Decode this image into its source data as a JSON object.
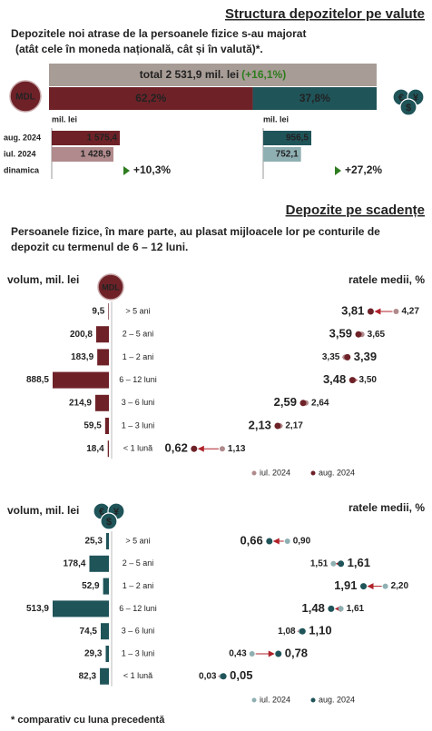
{
  "header": {
    "title": "Structura depozitelor pe valute",
    "subtitle": [
      "Depozitele noi atrase de la persoanele fizice s-au majorat",
      "(atât cele în moneda națională, cât și în valută)*."
    ]
  },
  "currency_split": {
    "total_label": "total 2 531,9 mil. lei",
    "total_change": "(+16,1%)",
    "total_color": "#a89c96",
    "mdl_badge": "MDL",
    "fx_badge": [
      "€",
      "¥",
      "$"
    ],
    "values": [
      62.2,
      37.8
    ],
    "value_labels": [
      "62,2%",
      "37,8%"
    ],
    "colors": [
      "#6e2228",
      "#1f5459"
    ]
  },
  "monthly": {
    "unit": "mil. lei",
    "rows": [
      "aug. 2024",
      "iul. 2024",
      "dinamica"
    ],
    "series": [
      {
        "values": [
          1575.4,
          1428.9
        ],
        "value_labels": [
          "1 575,4",
          "1 428,9"
        ],
        "change": "+10,3%",
        "colors": [
          "#6e2228",
          "#b08a8c"
        ]
      },
      {
        "values": [
          956.5,
          752.1
        ],
        "value_labels": [
          "956,5",
          "752,1"
        ],
        "change": "+27,2%",
        "colors": [
          "#1f5459",
          "#8fb0b3"
        ]
      }
    ]
  },
  "maturity": {
    "title": "Depozite pe scadențe",
    "subtitle": [
      "Persoanele fizice, în mare parte, au plasat mijloacele lor pe conturile de",
      "depozit cu termenul de 6 – 12 luni."
    ],
    "volume_label": "volum, mil. lei",
    "rates_label": "ratele medii, %",
    "categories": [
      "> 5 ani",
      "2 – 5 ani",
      "1 – 2 ani",
      "6 – 12 luni",
      "3 – 6 luni",
      "1 – 3 luni",
      "< 1 lună"
    ],
    "legend": [
      "iul. 2024",
      "aug. 2024"
    ],
    "panels": [
      {
        "color": "#6e2228",
        "light": "#b08a8c",
        "volume": {
          "values": [
            9.5,
            200.8,
            183.9,
            888.5,
            214.9,
            59.5,
            18.4
          ],
          "value_labels": [
            "9,5",
            "200,8",
            "183,9",
            "888,5",
            "214,9",
            "59,5",
            "18,4"
          ]
        },
        "rate_jul": {
          "values": [
            4.27,
            3.65,
            3.35,
            3.5,
            2.64,
            2.17,
            1.13
          ],
          "value_labels": [
            "4,27",
            "3,65",
            "3,35",
            "3,50",
            "2,64",
            "2,17",
            "1,13"
          ]
        },
        "rate_aug": {
          "values": [
            3.81,
            3.59,
            3.39,
            3.48,
            2.59,
            2.13,
            0.62
          ],
          "value_labels": [
            "3,81",
            "3,59",
            "3,39",
            "3,48",
            "2,59",
            "2,13",
            "0,62"
          ]
        }
      },
      {
        "color": "#1f5459",
        "light": "#8fb0b3",
        "volume": {
          "values": [
            25.3,
            178.4,
            52.9,
            513.9,
            74.5,
            29.3,
            82.3
          ],
          "value_labels": [
            "25,3",
            "178,4",
            "52,9",
            "513,9",
            "74,5",
            "29,3",
            "82,3"
          ]
        },
        "rate_jul": {
          "values": [
            0.9,
            1.51,
            2.2,
            1.61,
            1.08,
            0.43,
            0.03
          ],
          "value_labels": [
            "0,90",
            "1,51",
            "2,20",
            "1,61",
            "1,08",
            "0,43",
            "0,03"
          ]
        },
        "rate_aug": {
          "values": [
            0.66,
            1.61,
            1.91,
            1.48,
            1.1,
            0.78,
            0.05
          ],
          "value_labels": [
            "0,66",
            "1,61",
            "1,91",
            "1,48",
            "1,10",
            "0,78",
            "0,05"
          ]
        }
      }
    ]
  },
  "footnote": "* comparativ cu luna precedentă"
}
